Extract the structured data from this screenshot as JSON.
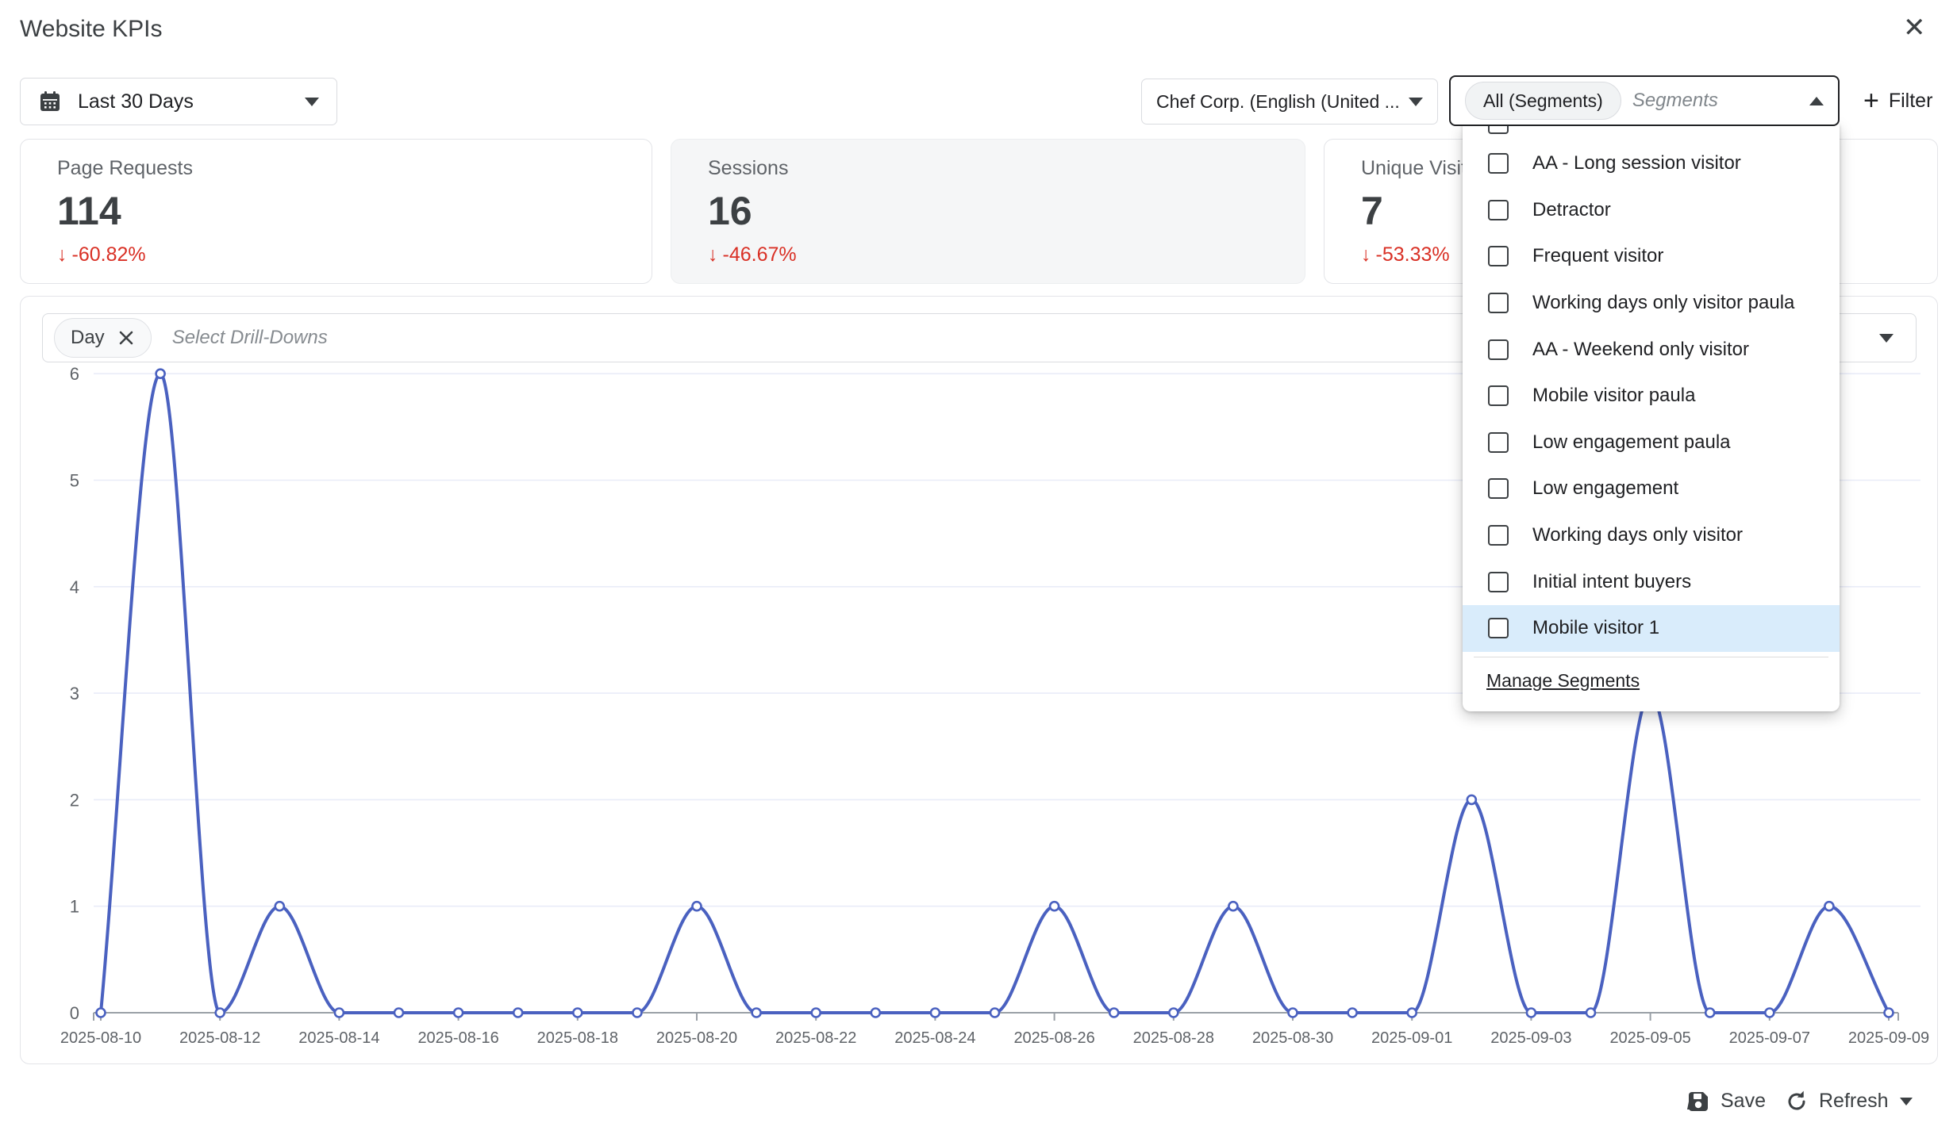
{
  "header": {
    "title": "Website KPIs",
    "close_glyph": "✕"
  },
  "toolbar": {
    "date_range": {
      "label": "Last 30 Days"
    },
    "company": {
      "label": "Chef Corp. (English (United ..."
    },
    "segments_select": {
      "chip": "All (Segments)",
      "placeholder": "Segments"
    },
    "filter": {
      "plus": "+",
      "label": "Filter"
    }
  },
  "kpis": [
    {
      "label": "Page Requests",
      "value": "114",
      "arrow": "↓",
      "delta": "-60.82%"
    },
    {
      "label": "Sessions",
      "value": "16",
      "arrow": "↓",
      "delta": "-46.67%"
    },
    {
      "label": "Unique Visitors",
      "value": "7",
      "arrow": "↓",
      "delta": "-53.33%"
    }
  ],
  "drilldown": {
    "chip": "Day",
    "placeholder": "Select Drill-Downs"
  },
  "segments_panel": {
    "items": [
      {
        "label": "AA - Long session visitor"
      },
      {
        "label": "Detractor"
      },
      {
        "label": "Frequent visitor"
      },
      {
        "label": "Working days only visitor paula"
      },
      {
        "label": "AA - Weekend only visitor"
      },
      {
        "label": "Mobile visitor paula"
      },
      {
        "label": "Low engagement paula"
      },
      {
        "label": "Low engagement"
      },
      {
        "label": "Working days only visitor"
      },
      {
        "label": "Initial intent buyers"
      },
      {
        "label": "Mobile visitor 1",
        "highlighted": true
      }
    ],
    "manage_label": "Manage Segments"
  },
  "footer": {
    "save_label": "Save",
    "refresh_label": "Refresh"
  },
  "chart_data": {
    "type": "line",
    "smooth": true,
    "markers": true,
    "x": [
      "2025-08-10",
      "2025-08-11",
      "2025-08-12",
      "2025-08-13",
      "2025-08-14",
      "2025-08-15",
      "2025-08-16",
      "2025-08-17",
      "2025-08-18",
      "2025-08-19",
      "2025-08-20",
      "2025-08-21",
      "2025-08-22",
      "2025-08-23",
      "2025-08-24",
      "2025-08-25",
      "2025-08-26",
      "2025-08-27",
      "2025-08-28",
      "2025-08-29",
      "2025-08-30",
      "2025-08-31",
      "2025-09-01",
      "2025-09-02",
      "2025-09-03",
      "2025-09-04",
      "2025-09-05",
      "2025-09-06",
      "2025-09-07",
      "2025-09-08",
      "2025-09-09"
    ],
    "values": [
      0,
      6,
      0,
      1,
      0,
      0,
      0,
      0,
      0,
      0,
      1,
      0,
      0,
      0,
      0,
      0,
      1,
      0,
      0,
      1,
      0,
      0,
      0,
      2,
      0,
      0,
      3,
      0,
      0,
      1,
      0
    ],
    "series_name": "Sessions",
    "ylim": [
      0,
      6
    ],
    "yticks": [
      0,
      1,
      2,
      3,
      4,
      5,
      6
    ],
    "x_tick_labels": [
      "2025-08-10",
      "2025-08-12",
      "2025-08-14",
      "2025-08-16",
      "2025-08-18",
      "2025-08-20",
      "2025-08-22",
      "2025-08-24",
      "2025-08-26",
      "2025-08-28",
      "2025-08-30",
      "2025-09-01",
      "2025-09-03",
      "2025-09-05",
      "2025-09-07",
      "2025-09-09"
    ],
    "colors": {
      "line": "#4a61c0",
      "grid": "#e9ecf8",
      "axis": "#9aa0a6",
      "tick_label": "#5f6368"
    }
  }
}
